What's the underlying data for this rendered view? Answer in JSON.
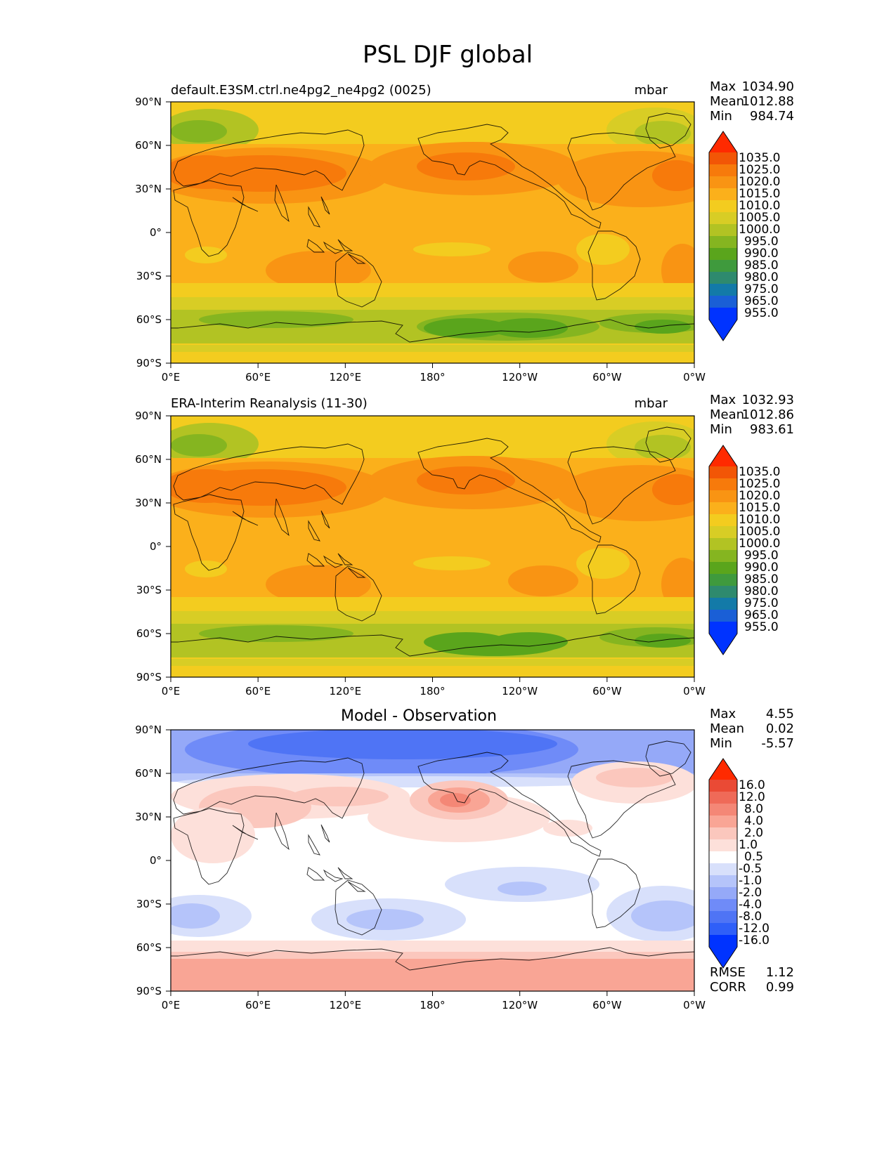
{
  "figure": {
    "title": "PSL DJF global"
  },
  "map_ticks": {
    "lat": [
      "90°N",
      "60°N",
      "30°N",
      "0°",
      "30°S",
      "60°S",
      "90°S"
    ],
    "lon": [
      "0°E",
      "60°E",
      "120°E",
      "180°",
      "120°W",
      "60°W",
      "0°W"
    ]
  },
  "panels": [
    {
      "id": "model",
      "title_left": "default.E3SM.ctrl.ne4pg2_ne4pg2 (0025)",
      "title_right": "mbar",
      "stats": {
        "max_label": "Max",
        "max": "1034.90",
        "mean_label": "Mean",
        "mean": "1012.88",
        "min_label": "Min",
        "min": "984.74"
      },
      "colorbar_labels": [
        "1035.0",
        "1025.0",
        "1020.0",
        "1015.0",
        "1010.0",
        "1005.0",
        "1000.0",
        "995.0",
        "990.0",
        "985.0",
        "980.0",
        "975.0",
        "965.0",
        "955.0"
      ]
    },
    {
      "id": "obs",
      "title_left": "ERA-Interim Reanalysis (11-30)",
      "title_right": "mbar",
      "stats": {
        "max_label": "Max",
        "max": "1032.93",
        "mean_label": "Mean",
        "mean": "1012.86",
        "min_label": "Min",
        "min": "983.61"
      },
      "colorbar_labels": [
        "1035.0",
        "1025.0",
        "1020.0",
        "1015.0",
        "1010.0",
        "1005.0",
        "1000.0",
        "995.0",
        "990.0",
        "985.0",
        "980.0",
        "975.0",
        "965.0",
        "955.0"
      ]
    },
    {
      "id": "diff",
      "title_center": "Model - Observation",
      "stats": {
        "max_label": "Max",
        "max": "4.55",
        "mean_label": "Mean",
        "mean": "0.02",
        "min_label": "Min",
        "min": "-5.57"
      },
      "colorbar_labels": [
        "16.0",
        "12.0",
        "8.0",
        "4.0",
        "2.0",
        "1.0",
        "0.5",
        "-0.5",
        "-1.0",
        "-2.0",
        "-4.0",
        "-8.0",
        "-12.0",
        "-16.0"
      ],
      "metrics": {
        "rmse_label": "RMSE",
        "rmse": "1.12",
        "corr_label": "CORR",
        "corr": "0.99"
      }
    }
  ],
  "palettes": {
    "psl": [
      "#0033ff",
      "#1a5fd6",
      "#137aa8",
      "#2e8a6e",
      "#3f9a3d",
      "#5aa51c",
      "#85b520",
      "#b2c323",
      "#d8cd25",
      "#f3cc1f",
      "#fbb01b",
      "#f99413",
      "#f77a0b",
      "#f25606",
      "#ff2a00"
    ],
    "diff": [
      "#0033ff",
      "#2f5ff8",
      "#4f74f5",
      "#6f8bf8",
      "#95a9f8",
      "#b5c4fa",
      "#d8e0fb",
      "#ffffff",
      "#fde0da",
      "#fbc7bd",
      "#f9a595",
      "#f48776",
      "#ef6a58",
      "#ea4a35",
      "#ff2a00"
    ]
  }
}
